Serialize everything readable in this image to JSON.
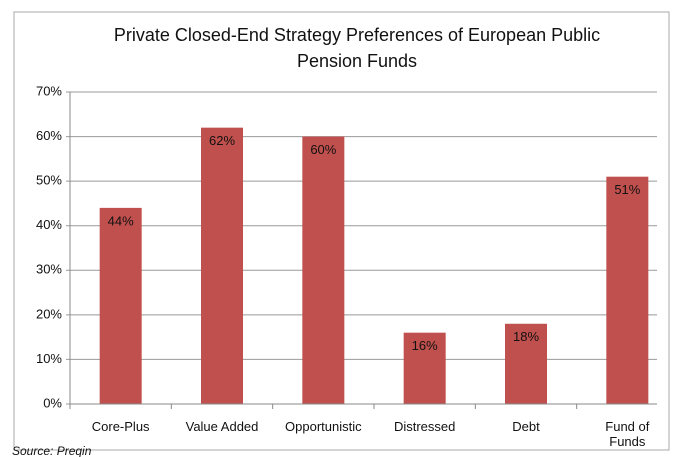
{
  "chart_data": {
    "type": "bar",
    "title": "Private Closed-End Strategy Preferences of European Public",
    "title_line2": "Pension Funds",
    "source": "Source: Preqin",
    "categories": [
      "Core-Plus",
      "Value Added",
      "Opportunistic",
      "Distressed",
      "Debt",
      "Fund of Funds"
    ],
    "values": [
      44,
      62,
      60,
      16,
      18,
      51
    ],
    "value_labels": [
      "44%",
      "62%",
      "60%",
      "16%",
      "18%",
      "51%"
    ],
    "color": "#c0504d",
    "ylim": [
      0,
      70
    ],
    "yticks": [
      {
        "value": 0,
        "label": "0%"
      },
      {
        "value": 10,
        "label": "10%"
      },
      {
        "value": 20,
        "label": "20%"
      },
      {
        "value": 30,
        "label": "30%"
      },
      {
        "value": 40,
        "label": "40%"
      },
      {
        "value": 50,
        "label": "50%"
      },
      {
        "value": 60,
        "label": "60%"
      },
      {
        "value": 70,
        "label": "70%"
      }
    ],
    "grid": true
  }
}
